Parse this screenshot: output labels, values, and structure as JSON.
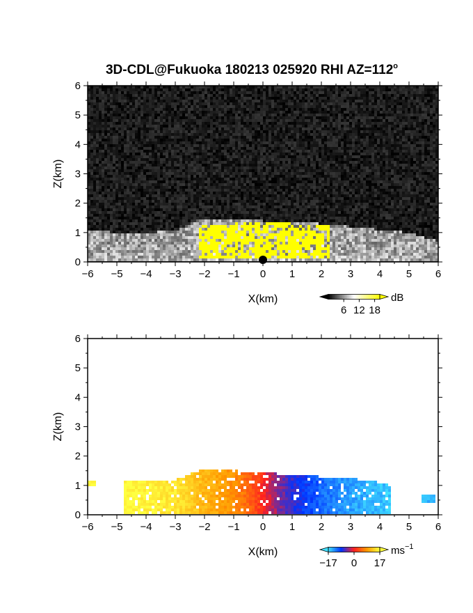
{
  "title": "3D-CDL@Fukuoka 180213 025920 RHI AZ=112",
  "title_degree": "o",
  "chart_data": [
    {
      "type": "heatmap",
      "panel": "intensity",
      "xlabel": "X(km)",
      "ylabel": "Z(km)",
      "xlim": [
        -6,
        6
      ],
      "ylim": [
        0,
        6
      ],
      "xticks": [
        -6,
        -5,
        -4,
        -3,
        -2,
        -1,
        0,
        1,
        2,
        3,
        4,
        5,
        6
      ],
      "yticks": [
        0,
        1,
        2,
        3,
        4,
        5,
        6
      ],
      "background": "#1e1e1e",
      "colorbar": {
        "unit": "dB",
        "ticks": [
          6,
          12,
          18
        ],
        "range": [
          0,
          20
        ],
        "colors": [
          "#000000",
          "#ffffff",
          "#ffff00"
        ]
      },
      "echo_top_km": [
        {
          "x": -6,
          "z": 1.1
        },
        {
          "x": -5,
          "z": 1.0
        },
        {
          "x": -4,
          "z": 1.0
        },
        {
          "x": -3,
          "z": 1.05
        },
        {
          "x": -2.3,
          "z": 1.4
        },
        {
          "x": -1,
          "z": 1.45
        },
        {
          "x": 0,
          "z": 1.4
        },
        {
          "x": 1,
          "z": 1.35
        },
        {
          "x": 2,
          "z": 1.3
        },
        {
          "x": 3,
          "z": 1.2
        },
        {
          "x": 4,
          "z": 1.1
        },
        {
          "x": 5,
          "z": 1.0
        },
        {
          "x": 6,
          "z": 0.7
        }
      ],
      "saturated_region_km": {
        "x": [
          -2.2,
          2.3
        ],
        "z": [
          0.1,
          1.35
        ],
        "value_db": 20
      }
    },
    {
      "type": "heatmap",
      "panel": "radial velocity",
      "xlabel": "X(km)",
      "ylabel": "Z(km)",
      "xlim": [
        -6,
        6
      ],
      "ylim": [
        0,
        6
      ],
      "xticks": [
        -6,
        -5,
        -4,
        -3,
        -2,
        -1,
        0,
        1,
        2,
        3,
        4,
        5,
        6
      ],
      "yticks": [
        0,
        1,
        2,
        3,
        4,
        5,
        6
      ],
      "background": "#ffffff",
      "colorbar": {
        "unit": "ms",
        "unit_exp": "-1",
        "ticks": [
          -17,
          0,
          17
        ],
        "range": [
          -17,
          17
        ],
        "colors": [
          "#40e0ff",
          "#0033ff",
          "#ff2020",
          "#ff9900",
          "#ffff40"
        ]
      },
      "velocity_profile": [
        {
          "x": -4.8,
          "v": 17
        },
        {
          "x": -3,
          "v": 15
        },
        {
          "x": -2,
          "v": 11
        },
        {
          "x": -1,
          "v": 8
        },
        {
          "x": -0.1,
          "v": 2
        },
        {
          "x": 0.1,
          "v": -1
        },
        {
          "x": 1,
          "v": -7
        },
        {
          "x": 2,
          "v": -11
        },
        {
          "x": 3,
          "v": -14
        },
        {
          "x": 4.4,
          "v": -16
        }
      ],
      "echo_top_km": [
        {
          "x": -5.8,
          "z": 1.1
        },
        {
          "x": -4,
          "z": 1.15
        },
        {
          "x": -3,
          "z": 1.2
        },
        {
          "x": -2,
          "z": 1.55
        },
        {
          "x": -1,
          "z": 1.5
        },
        {
          "x": 0,
          "z": 1.45
        },
        {
          "x": 1,
          "z": 1.35
        },
        {
          "x": 2,
          "z": 1.3
        },
        {
          "x": 3,
          "z": 1.25
        },
        {
          "x": 4,
          "z": 1.1
        },
        {
          "x": 4.5,
          "z": 0.95
        }
      ]
    }
  ]
}
